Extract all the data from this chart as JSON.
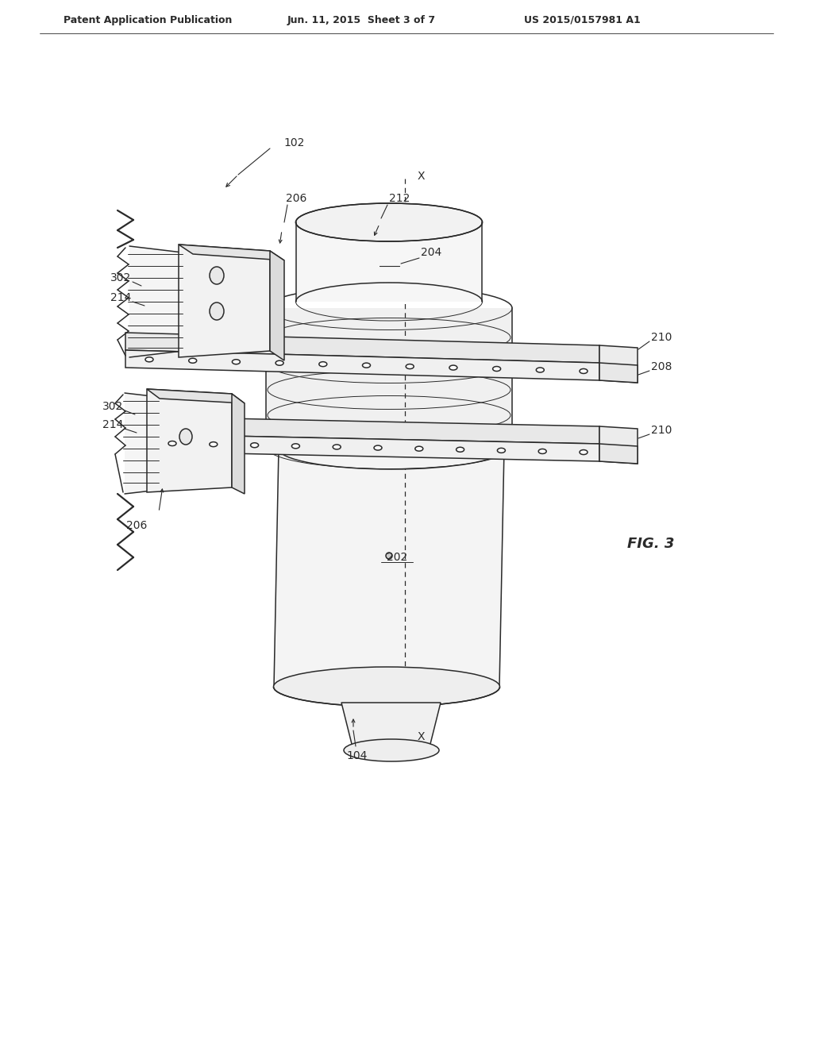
{
  "background_color": "#ffffff",
  "line_color": "#2a2a2a",
  "header_text": "Patent Application Publication",
  "header_date": "Jun. 11, 2015  Sheet 3 of 7",
  "header_patent": "US 2015/0157981 A1",
  "fig_label": "FIG. 3",
  "ref_102": "102",
  "ref_104": "104",
  "ref_202": "202",
  "ref_204": "204",
  "ref_206_top": "206",
  "ref_206_bot": "206",
  "ref_208": "208",
  "ref_210_top": "210",
  "ref_210_bot": "210",
  "ref_212": "212",
  "ref_214_top": "214",
  "ref_214_bot": "214",
  "ref_302_top": "302",
  "ref_302_bot": "302",
  "axis_label_top": "X",
  "axis_label_bot": "X"
}
